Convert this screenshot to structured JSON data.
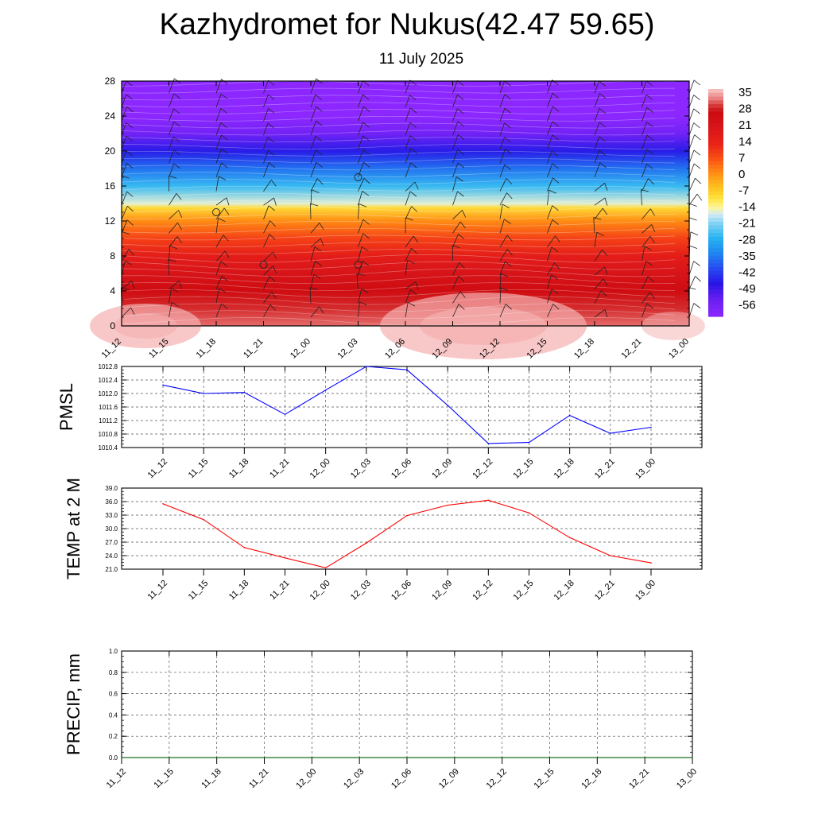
{
  "title": "Kazhydromet for Nukus(42.47 59.65)",
  "subtitle": "11 July 2025",
  "chart_data": [
    {
      "type": "heatmap",
      "title": "",
      "y_ticks": [
        "0",
        "4",
        "8",
        "12",
        "16",
        "20",
        "24",
        "28"
      ],
      "x_ticks": [
        "11_12",
        "11_15",
        "11_18",
        "11_21",
        "12_00",
        "12_03",
        "12_06",
        "12_09",
        "12_12",
        "12_15",
        "12_18",
        "12_21",
        "13_00"
      ],
      "ylim": [
        0,
        28
      ],
      "colorbar": {
        "labels": [
          "35",
          "28",
          "21",
          "14",
          "7",
          "0",
          "-7",
          "-14",
          "-21",
          "-28",
          "-35",
          "-42",
          "-49",
          "-56"
        ],
        "range": [
          -60,
          38
        ]
      },
      "temperature_profile": [
        {
          "level": 0,
          "value": 33
        },
        {
          "level": 2,
          "value": 30
        },
        {
          "level": 4,
          "value": 27
        },
        {
          "level": 6,
          "value": 22
        },
        {
          "level": 8,
          "value": 17
        },
        {
          "level": 10,
          "value": 10
        },
        {
          "level": 12,
          "value": 2
        },
        {
          "level": 13.5,
          "value": -8
        },
        {
          "level": 14,
          "value": -15
        },
        {
          "level": 16,
          "value": -25
        },
        {
          "level": 18,
          "value": -35
        },
        {
          "level": 20,
          "value": -45
        },
        {
          "level": 22,
          "value": -55
        },
        {
          "level": 24,
          "value": -60
        },
        {
          "level": 28,
          "value": -60
        }
      ],
      "circle_markers": [
        {
          "x": "11_18",
          "level": 13
        },
        {
          "x": "11_21",
          "level": 7
        },
        {
          "x": "12_03",
          "level": 17
        },
        {
          "x": "12_03",
          "level": 7
        }
      ]
    },
    {
      "type": "line",
      "ylabel": "PMSL",
      "ylim": [
        1010.4,
        1012.8
      ],
      "y_ticks": [
        "1012.8",
        "1012.4",
        "1012.0",
        "1011.6",
        "1011.2",
        "1010.8",
        "1010.4"
      ],
      "x_ticks": [
        "11_12",
        "11_15",
        "11_18",
        "11_21",
        "12_00",
        "12_03",
        "12_06",
        "12_09",
        "12_12",
        "12_15",
        "12_18",
        "12_21",
        "13_00"
      ],
      "series": [
        {
          "values": [
            1012.25,
            1012.0,
            1012.03,
            1011.38,
            1012.1,
            1012.8,
            1012.7,
            1011.65,
            1010.52,
            1010.55,
            1011.35,
            1010.82,
            1011.0
          ],
          "color": "#0000ff"
        }
      ]
    },
    {
      "type": "line",
      "ylabel": "TEMP at 2 M",
      "ylim": [
        21.0,
        39.0
      ],
      "y_ticks": [
        "39.0",
        "36.0",
        "33.0",
        "30.0",
        "27.0",
        "24.0",
        "21.0"
      ],
      "x_ticks": [
        "11_12",
        "11_15",
        "11_18",
        "11_21",
        "12_00",
        "12_03",
        "12_06",
        "12_09",
        "12_12",
        "12_15",
        "12_18",
        "12_21",
        "13_00"
      ],
      "series": [
        {
          "values": [
            35.5,
            32.0,
            25.8,
            23.5,
            21.3,
            26.8,
            32.9,
            35.2,
            36.3,
            33.5,
            28.0,
            24.0,
            22.4
          ],
          "color": "#ff0000"
        }
      ]
    },
    {
      "type": "line",
      "ylabel": "PRECIP, mm",
      "ylim": [
        0.0,
        1.0
      ],
      "y_ticks": [
        "1.0",
        "0.8",
        "0.6",
        "0.4",
        "0.2",
        "0.0"
      ],
      "x_ticks": [
        "11_12",
        "11_15",
        "11_18",
        "11_21",
        "12_00",
        "12_03",
        "12_06",
        "12_09",
        "12_12",
        "12_15",
        "12_18",
        "12_21",
        "13_00"
      ],
      "series": [
        {
          "values": [
            0,
            0,
            0,
            0,
            0,
            0,
            0,
            0,
            0,
            0,
            0,
            0,
            0
          ],
          "color": "#006400"
        }
      ]
    }
  ]
}
